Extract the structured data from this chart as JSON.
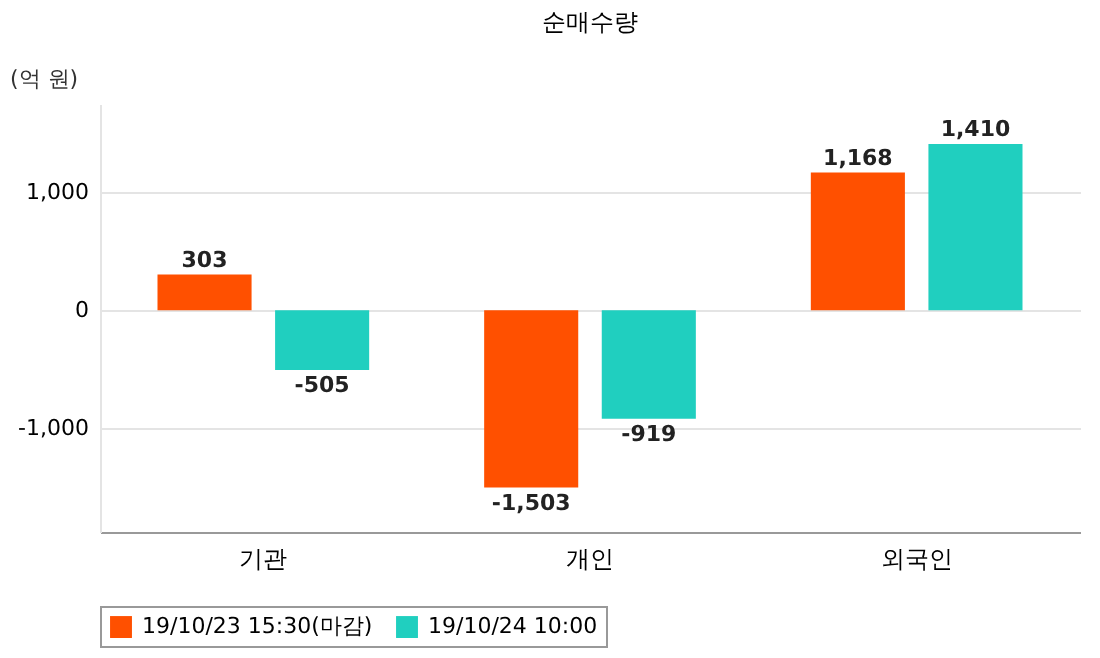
{
  "chart_data": {
    "type": "bar",
    "title": "순매수량",
    "ylabel": "(억 원)",
    "categories": [
      "기관",
      "개인",
      "외국인"
    ],
    "series": [
      {
        "name": "19/10/23 15:30(마감)",
        "color": "#ff5000",
        "values": [
          303,
          -1503,
          1168
        ],
        "value_labels": [
          "303",
          "-1,503",
          "1,168"
        ]
      },
      {
        "name": "19/10/24 10:00",
        "color": "#20cfbf",
        "values": [
          -505,
          -919,
          1410
        ],
        "value_labels": [
          "-505",
          "-919",
          "1,410"
        ]
      }
    ],
    "ylim": [
      -1880,
      1750
    ],
    "yticks": [
      {
        "value": -1000,
        "label": "-1,000"
      },
      0,
      {
        "value": 1000,
        "label": "1,000"
      }
    ],
    "grid": "y",
    "legend": "bottom"
  }
}
